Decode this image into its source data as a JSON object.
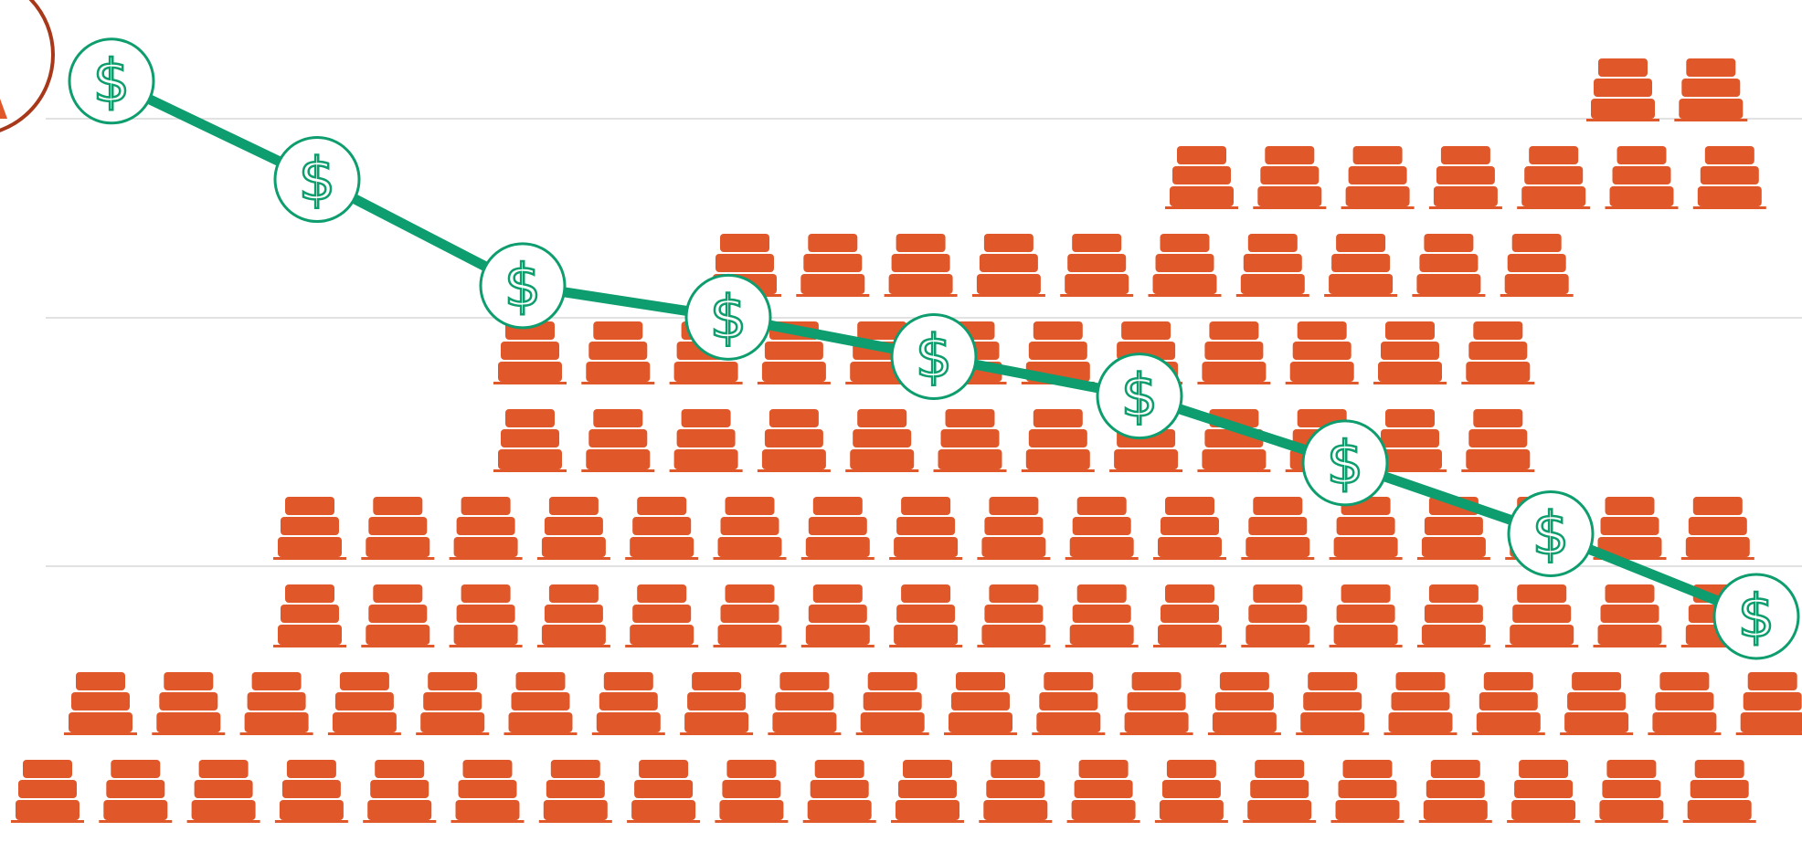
{
  "chart_data": {
    "type": "pictograph",
    "grid": true,
    "colors": {
      "icon": "#E0572A",
      "line": "#0E9D6E",
      "gridline": "#D9D9D9",
      "badge": "#A8381A",
      "background": "#FFFFFF"
    },
    "icon_name": "stacked-bar-icon",
    "marker_icon_name": "dollar-coin-icon",
    "marker_symbol": "$",
    "stacks": {
      "name": "",
      "columns_per_row": [
        20,
        20,
        17,
        17,
        12,
        12,
        10,
        7,
        2
      ]
    },
    "line": {
      "name": "",
      "x": [
        1,
        2,
        3,
        4,
        5,
        6,
        7,
        8,
        9
      ],
      "y": [
        9.55,
        8.3,
        6.95,
        6.55,
        6.05,
        5.55,
        4.7,
        3.8,
        2.75
      ]
    },
    "ylim": [
      0,
      10
    ]
  }
}
